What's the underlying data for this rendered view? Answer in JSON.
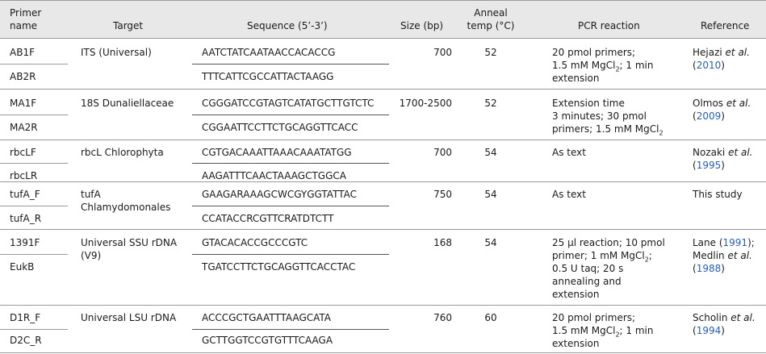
{
  "headers": {
    "primer_name_1": "Primer",
    "primer_name_2": "name",
    "target": "Target",
    "sequence": "Sequence (5’-3’)",
    "size": "Size (bp)",
    "anneal_1": "Anneal",
    "anneal_2": "temp (°C)",
    "pcr": "PCR reaction",
    "reference": "Reference"
  },
  "rows": [
    {
      "primer_a": "AB1F",
      "primer_b": "AB2R",
      "target_1": "ITS (Universal)",
      "target_2": "",
      "seq_a": "AATCTATCAATAACCACACCG",
      "seq_b": "TTTCATTCGCCATTACTAAGG",
      "size": "700",
      "anneal": "52",
      "pcr_1": "20 pmol primers;",
      "pcr_2_pre": "1.5 mM MgCl",
      "pcr_2_sub": "2",
      "pcr_2_post": "; 1 min",
      "pcr_3": "extension",
      "ref_1_author": "Hejazi ",
      "ref_1_etal": "et al.",
      "ref_2_year": "2010"
    },
    {
      "primer_a": "MA1F",
      "primer_b": "MA2R",
      "target_1": "18S Dunaliellaceae",
      "seq_a": "CGGGATCCGTAGTCATATGCTTGTCTC",
      "seq_b": "CGGAATTCCTTCTGCAGGTTCACC",
      "size": "1700-2500",
      "anneal": "52",
      "pcr_1": "Extension time",
      "pcr_2": "3 minutes; 30 pmol",
      "pcr_3_pre": "primers; 1.5 mM MgCl",
      "pcr_3_sub": "2",
      "ref_1_author": "Olmos ",
      "ref_1_etal": "et al.",
      "ref_2_year": "2009"
    },
    {
      "primer_a": "rbcLF",
      "primer_b": "rbcLR",
      "target_1": "rbcL Chlorophyta",
      "seq_a": "CGTGACAAATTAAACAAATATGG",
      "seq_b": "AAGATTTCAACTAAAGCTGGCA",
      "size": "700",
      "anneal": "54",
      "pcr_1": "As text",
      "ref_1_author": "Nozaki ",
      "ref_1_etal": "et al.",
      "ref_2_year": "1995"
    },
    {
      "primer_a": "tufA_F",
      "primer_b": "tufA_R",
      "target_1": "tufA",
      "target_2": "Chlamydomonales",
      "seq_a": "GAAGARAAAGCWCGYGGTATTAC",
      "seq_b": "CCATACCRCGTTCRATDTCTT",
      "size": "750",
      "anneal": "54",
      "pcr_1": "As text",
      "ref_1": "This study"
    },
    {
      "primer_a": "1391F",
      "primer_b": "EukB",
      "target_1": "Universal SSU rDNA",
      "target_2": "(V9)",
      "seq_a": "GTACACACCGCCCGTC",
      "seq_b": "TGATCCTTCTGCAGGTTCACCTAC",
      "size": "168",
      "anneal": "54",
      "pcr_1": "25 μl reaction; 10 pmol",
      "pcr_2": "primer; 1 mM MgCl",
      "pcr_2_sub": "2",
      "pcr_2_post": ";",
      "pcr_3": "0.5 U taq; 20 s",
      "pcr_4": "annealing and",
      "pcr_5": "extension",
      "ref_1_author": "Lane (",
      "ref_1_year": "1991",
      "ref_1_post": ");",
      "ref_2_author": "Medlin ",
      "ref_2_etal": "et al.",
      "ref_3_year": "1988"
    },
    {
      "primer_a": "D1R_F",
      "primer_b": "D2C_R",
      "target_1": "Universal LSU rDNA",
      "seq_a": "ACCCGCTGAATTTAAGCATA",
      "seq_b": "GCTTGGTCCGTGTTTCAAGA",
      "size": "760",
      "anneal": "60",
      "pcr_1": "20 pmol primers;",
      "pcr_2_pre": "1.5 mM MgCl",
      "pcr_2_sub": "2",
      "pcr_2_post": "; 1 min",
      "pcr_3": "extension",
      "ref_1_author": "Scholin ",
      "ref_1_etal": "et al.",
      "ref_2_year": "1994"
    }
  ]
}
